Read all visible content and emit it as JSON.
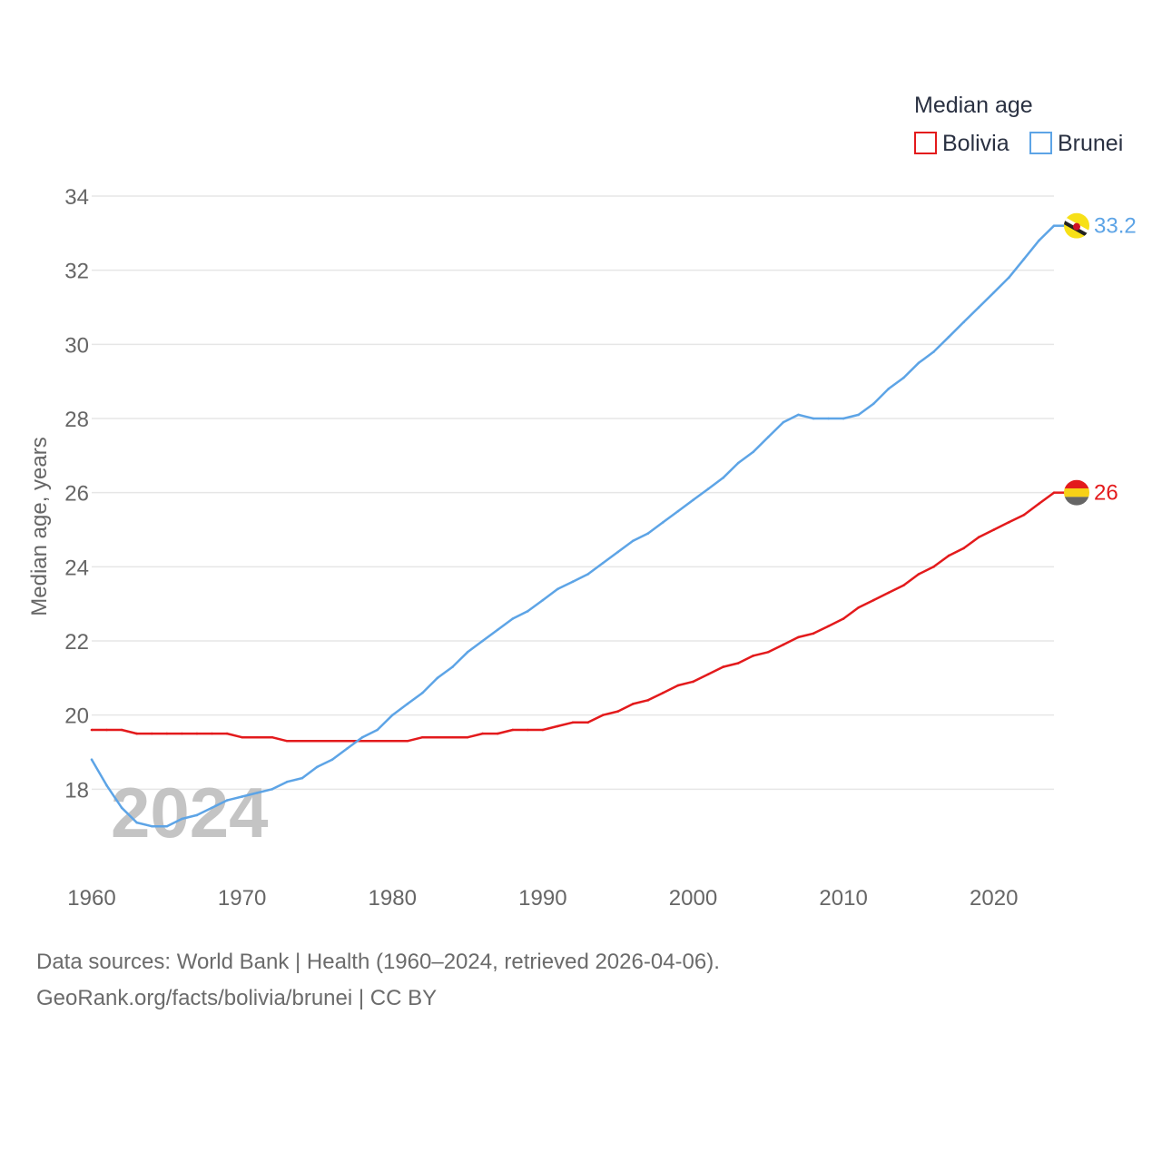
{
  "chart_data": {
    "type": "line",
    "title": "",
    "xlabel": "",
    "ylabel": "Median age, years",
    "xlim": [
      1960,
      2024
    ],
    "ylim": [
      16,
      34
    ],
    "x_ticks": [
      1960,
      1970,
      1980,
      1990,
      2000,
      2010,
      2020
    ],
    "y_ticks": [
      18,
      20,
      22,
      24,
      26,
      28,
      30,
      32,
      34
    ],
    "grid": true,
    "legend": {
      "title": "Median age",
      "position": "top-right"
    },
    "watermark_year": "2024",
    "x": [
      1960,
      1961,
      1962,
      1963,
      1964,
      1965,
      1966,
      1967,
      1968,
      1969,
      1970,
      1971,
      1972,
      1973,
      1974,
      1975,
      1976,
      1977,
      1978,
      1979,
      1980,
      1981,
      1982,
      1983,
      1984,
      1985,
      1986,
      1987,
      1988,
      1989,
      1990,
      1991,
      1992,
      1993,
      1994,
      1995,
      1996,
      1997,
      1998,
      1999,
      2000,
      2001,
      2002,
      2003,
      2004,
      2005,
      2006,
      2007,
      2008,
      2009,
      2010,
      2011,
      2012,
      2013,
      2014,
      2015,
      2016,
      2017,
      2018,
      2019,
      2020,
      2021,
      2022,
      2023,
      2024
    ],
    "series": [
      {
        "name": "Bolivia",
        "color": "#e31a1c",
        "end_label": "26",
        "flag": "bolivia-flag-icon",
        "values": [
          19.6,
          19.6,
          19.6,
          19.5,
          19.5,
          19.5,
          19.5,
          19.5,
          19.5,
          19.5,
          19.4,
          19.4,
          19.4,
          19.3,
          19.3,
          19.3,
          19.3,
          19.3,
          19.3,
          19.3,
          19.3,
          19.3,
          19.4,
          19.4,
          19.4,
          19.4,
          19.5,
          19.5,
          19.6,
          19.6,
          19.6,
          19.7,
          19.8,
          19.8,
          20.0,
          20.1,
          20.3,
          20.4,
          20.6,
          20.8,
          20.9,
          21.1,
          21.3,
          21.4,
          21.6,
          21.7,
          21.9,
          22.1,
          22.2,
          22.4,
          22.6,
          22.9,
          23.1,
          23.3,
          23.5,
          23.8,
          24.0,
          24.3,
          24.5,
          24.8,
          25.0,
          25.2,
          25.4,
          25.7,
          26.0
        ]
      },
      {
        "name": "Brunei",
        "color": "#5da4e6",
        "end_label": "33.2",
        "flag": "brunei-flag-icon",
        "values": [
          18.8,
          18.1,
          17.5,
          17.1,
          17.0,
          17.0,
          17.2,
          17.3,
          17.5,
          17.7,
          17.8,
          17.9,
          18.0,
          18.2,
          18.3,
          18.6,
          18.8,
          19.1,
          19.4,
          19.6,
          20.0,
          20.3,
          20.6,
          21.0,
          21.3,
          21.7,
          22.0,
          22.3,
          22.6,
          22.8,
          23.1,
          23.4,
          23.6,
          23.8,
          24.1,
          24.4,
          24.7,
          24.9,
          25.2,
          25.5,
          25.8,
          26.1,
          26.4,
          26.8,
          27.1,
          27.5,
          27.9,
          28.1,
          28.0,
          28.0,
          28.0,
          28.1,
          28.4,
          28.8,
          29.1,
          29.5,
          29.8,
          30.2,
          30.6,
          31.0,
          31.4,
          31.8,
          32.3,
          32.8,
          33.2
        ]
      }
    ]
  },
  "footer": {
    "sources": "Data sources: World Bank | Health (1960–2024, retrieved 2026-04-06).",
    "credit": "GeoRank.org/facts/bolivia/brunei | CC BY"
  }
}
